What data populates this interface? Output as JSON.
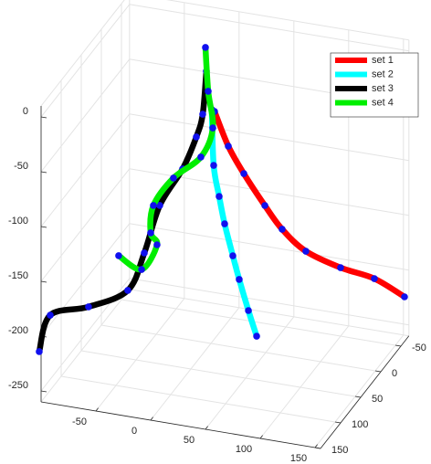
{
  "chart_data": {
    "type": "line3d",
    "xlim": [
      -100,
      155
    ],
    "ylim": [
      -70,
      150
    ],
    "zlim": [
      -260,
      10
    ],
    "xticks": [
      -50,
      0,
      50,
      100,
      150
    ],
    "yticks": [
      -50,
      0,
      50,
      100,
      150
    ],
    "zticks": [
      -250,
      -200,
      -150,
      -100,
      -50,
      0
    ],
    "grid": true,
    "legend": "northeast",
    "marker_color": "#1010ee",
    "series": [
      {
        "name": "set 1",
        "color": "#ff0000",
        "x": [
          3.3,
          12.2,
          22.7,
          38.2,
          50.3,
          68.3,
          96.3,
          125.3,
          151
        ],
        "y": [
          0,
          -10,
          -20,
          -30,
          -40,
          -50,
          -60,
          -65,
          -70
        ],
        "z": [
          -47.8,
          -82.7,
          -110.6,
          -141.8,
          -166.1,
          -187.8,
          -202.8,
          -210.3,
          -225
        ]
      },
      {
        "name": "set 2",
        "color": "#00ffff",
        "x": [
          0.8,
          2.5,
          7.5,
          12.5,
          20,
          25.8,
          34.2,
          41.7
        ],
        "y": [
          0,
          0,
          0,
          0,
          0,
          0,
          0,
          0
        ],
        "z": [
          -46.5,
          -97.1,
          -124.6,
          -148.8,
          -176.7,
          -197.3,
          -224.3,
          -246.4
        ]
      },
      {
        "name": "set 3",
        "color": "#000000",
        "x": [
          -101.7,
          -93.5,
          -67.7,
          -39.2,
          -31.5,
          -24.7,
          -11.2,
          -6,
          -7.5,
          -4.2
        ],
        "y": [
          150,
          145,
          120,
          100,
          80,
          60,
          40,
          20,
          0,
          0
        ],
        "z": [
          -214.4,
          -182.1,
          -181.9,
          -171.5,
          -145.4,
          -110.2,
          -84,
          -63.3,
          -52.1,
          -12.3
        ]
      },
      {
        "name": "set 4",
        "color": "#00ee00",
        "x": [
          -5,
          -2.5,
          1.7,
          -9.2,
          -34.2,
          -52.5,
          -55,
          -49.2,
          -63.3,
          -84.2
        ],
        "y": [
          0,
          0,
          0,
          0,
          0,
          0,
          0,
          0,
          0,
          0
        ],
        "z": [
          9.2,
          -30.4,
          -63.1,
          -91.5,
          -114.8,
          -142.9,
          -168.3,
          -178.2,
          -203.1,
          -194
        ]
      }
    ]
  }
}
